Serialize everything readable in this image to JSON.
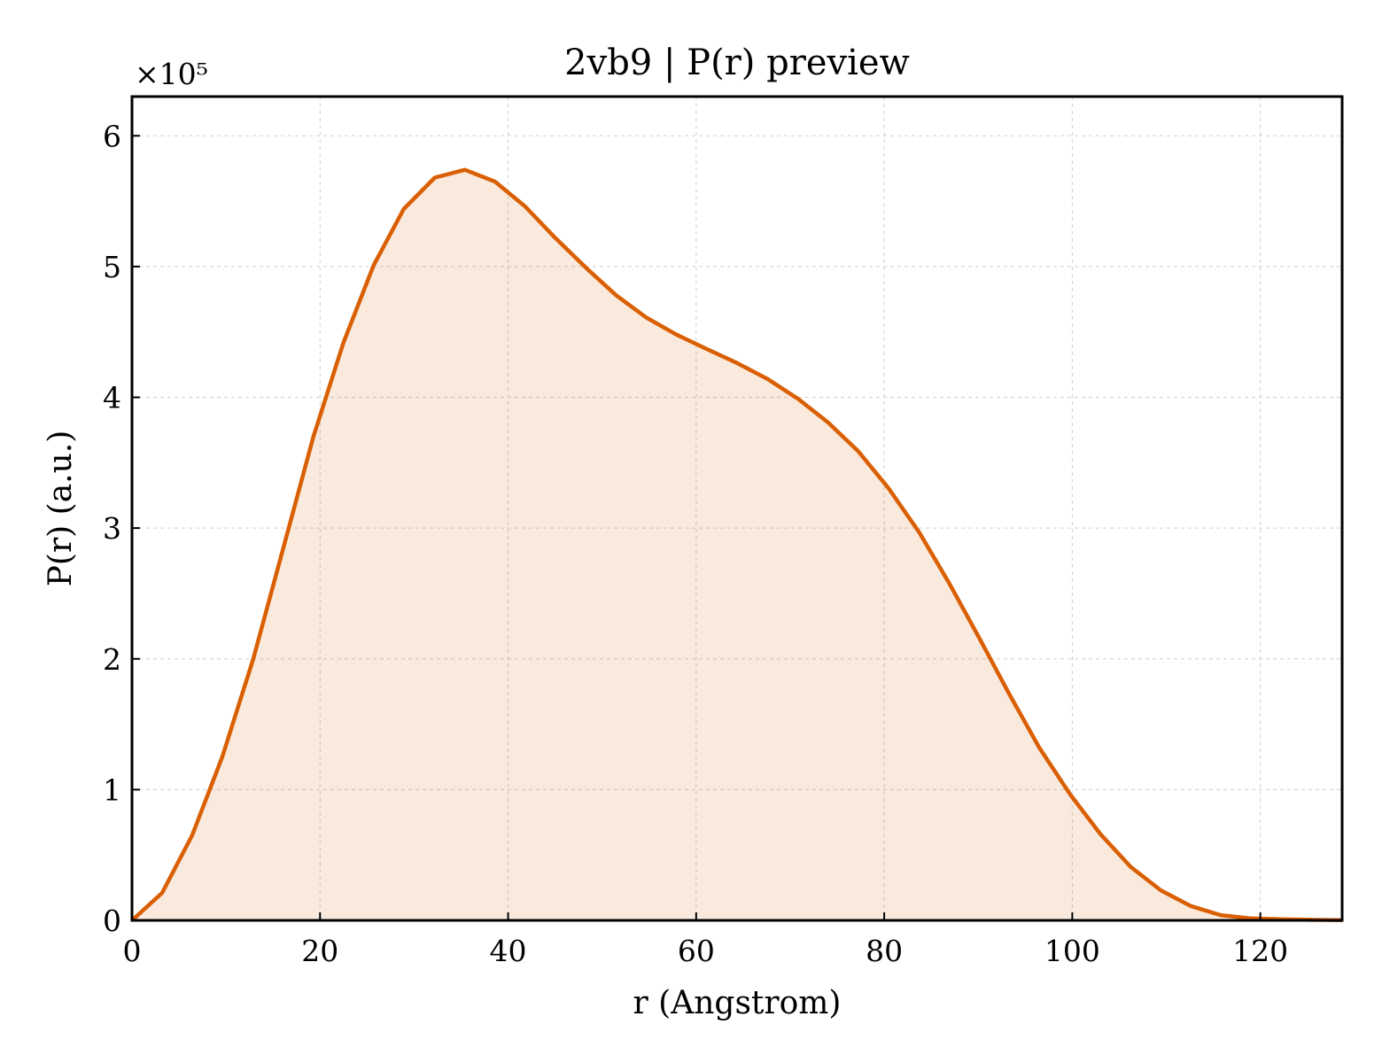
{
  "chart_data": {
    "type": "area",
    "title": "2vb9 | P(r) preview",
    "xlabel": "r (Angstrom)",
    "ylabel": "P(r) (a.u.)",
    "y_scale_label": "×10⁵",
    "xlim": [
      0,
      128.7
    ],
    "ylim": [
      0,
      6.3
    ],
    "y_multiplier": 100000,
    "x_ticks": [
      0,
      20,
      40,
      60,
      80,
      100,
      120
    ],
    "y_ticks": [
      0,
      1,
      2,
      3,
      4,
      5,
      6
    ],
    "grid": true,
    "series": [
      {
        "color": "#d95f02",
        "fill_color": "#d95f02",
        "x": [
          0,
          3.2,
          6.4,
          9.6,
          12.9,
          16.1,
          19.3,
          22.5,
          25.7,
          28.9,
          32.2,
          35.4,
          38.6,
          41.8,
          45.0,
          48.3,
          51.5,
          54.7,
          57.9,
          61.1,
          64.4,
          67.6,
          70.8,
          74.0,
          77.2,
          80.4,
          83.7,
          86.9,
          90.1,
          93.3,
          96.5,
          99.8,
          103.0,
          106.2,
          109.4,
          112.6,
          115.8,
          119.1,
          122.3,
          125.5,
          128.7
        ],
        "y": [
          0,
          0.21,
          0.65,
          1.25,
          2.0,
          2.85,
          3.7,
          4.42,
          5.01,
          5.44,
          5.68,
          5.74,
          5.65,
          5.46,
          5.22,
          4.99,
          4.78,
          4.61,
          4.48,
          4.37,
          4.26,
          4.14,
          3.99,
          3.81,
          3.59,
          3.31,
          2.97,
          2.58,
          2.16,
          1.73,
          1.32,
          0.96,
          0.66,
          0.41,
          0.23,
          0.11,
          0.04,
          0.015,
          0.008,
          0.004,
          0.002
        ]
      }
    ]
  }
}
